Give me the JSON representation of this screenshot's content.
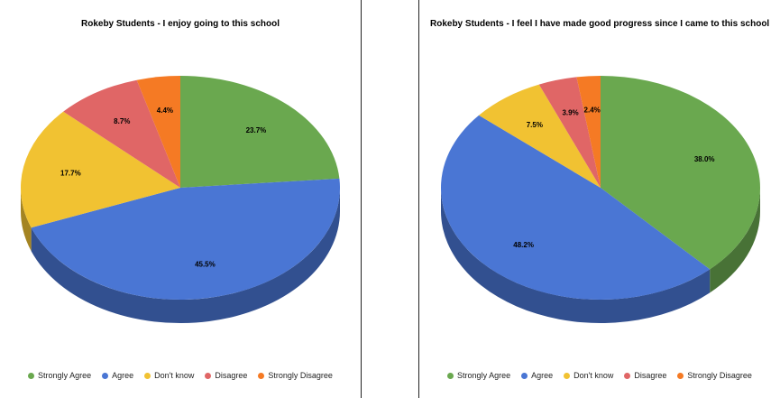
{
  "chart_data": [
    {
      "type": "pie",
      "title": "Rokeby Students - I enjoy going to this school",
      "categories": [
        "Strongly Agree",
        "Agree",
        "Don't know",
        "Disagree",
        "Strongly Disagree"
      ],
      "values": [
        23.7,
        45.5,
        17.7,
        8.7,
        4.4
      ],
      "labels": [
        "23.7%",
        "45.5%",
        "17.7%",
        "8.7%",
        "4.4%"
      ],
      "colors": [
        "#6aa84f",
        "#4a76d4",
        "#f1c232",
        "#e06666",
        "#f57a24"
      ],
      "legend_position": "bottom",
      "style": "3d"
    },
    {
      "type": "pie",
      "title": "Rokeby Students - I feel I have made good progress since I came to this school",
      "categories": [
        "Strongly Agree",
        "Agree",
        "Don't know",
        "Disagree",
        "Strongly Disagree"
      ],
      "values": [
        38.0,
        48.2,
        7.5,
        3.9,
        2.4
      ],
      "labels": [
        "38.0%",
        "48.2%",
        "7.5%",
        "3.9%",
        "2.4%"
      ],
      "colors": [
        "#6aa84f",
        "#4a76d4",
        "#f1c232",
        "#e06666",
        "#f57a24"
      ],
      "legend_position": "bottom",
      "style": "3d"
    }
  ]
}
